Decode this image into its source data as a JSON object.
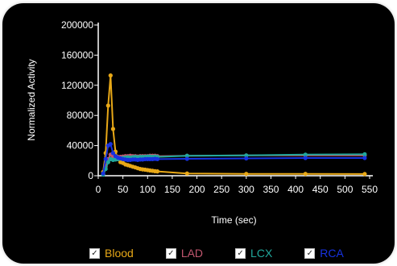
{
  "chart_data": {
    "type": "line",
    "title": "",
    "xlabel": "Time (sec)",
    "ylabel": "Normalized Activity",
    "xlim": [
      0,
      550
    ],
    "ylim": [
      0,
      200000
    ],
    "x_ticks": [
      0,
      50,
      100,
      150,
      200,
      250,
      300,
      350,
      400,
      450,
      500,
      550
    ],
    "x_tick_labels": [
      "0",
      "50",
      "100",
      "150",
      "200",
      "250",
      "300",
      "350",
      "400",
      "450",
      "500",
      "550"
    ],
    "y_ticks": [
      0,
      40000,
      80000,
      120000,
      160000,
      200000
    ],
    "y_tick_labels": [
      "0",
      "40000",
      "80000",
      "120000",
      "160000",
      "200000"
    ],
    "grid": false,
    "legend_position": "bottom",
    "series": [
      {
        "name": "Blood",
        "color": "#e8a817",
        "x": [
          10,
          15,
          20,
          25,
          30,
          35,
          40,
          45,
          50,
          55,
          60,
          65,
          70,
          75,
          80,
          85,
          90,
          95,
          100,
          105,
          110,
          115,
          120,
          180,
          300,
          420,
          540
        ],
        "y": [
          5000,
          30000,
          93000,
          133000,
          62000,
          32000,
          22000,
          18000,
          17000,
          15000,
          14000,
          13000,
          12000,
          11000,
          10000,
          9000,
          8500,
          8000,
          7500,
          7000,
          6500,
          6000,
          5800,
          3000,
          2500,
          2500,
          2200
        ]
      },
      {
        "name": "LAD",
        "color": "#c0566e",
        "x": [
          10,
          15,
          20,
          25,
          30,
          35,
          40,
          45,
          50,
          55,
          60,
          65,
          70,
          75,
          80,
          85,
          90,
          95,
          100,
          105,
          110,
          115,
          120,
          180,
          300,
          420,
          540
        ],
        "y": [
          2000,
          12000,
          22000,
          28000,
          26000,
          25000,
          25000,
          25000,
          25500,
          26000,
          26000,
          26500,
          26000,
          26000,
          25500,
          26000,
          26000,
          26000,
          26000,
          26500,
          26500,
          26500,
          26000,
          26500,
          27000,
          27000,
          27000
        ]
      },
      {
        "name": "LCX",
        "color": "#21a89c",
        "x": [
          10,
          15,
          20,
          25,
          30,
          35,
          40,
          45,
          50,
          55,
          60,
          65,
          70,
          75,
          80,
          85,
          90,
          95,
          100,
          105,
          110,
          115,
          120,
          180,
          300,
          420,
          540
        ],
        "y": [
          1500,
          9000,
          18000,
          22000,
          21000,
          21500,
          22000,
          23000,
          23500,
          24000,
          24500,
          24000,
          24500,
          25000,
          24500,
          25000,
          25000,
          25000,
          25500,
          25500,
          25000,
          25500,
          25000,
          26500,
          27000,
          28000,
          28500
        ]
      },
      {
        "name": "RCA",
        "color": "#1732e0",
        "x": [
          10,
          15,
          20,
          25,
          30,
          35,
          40,
          45,
          50,
          55,
          60,
          65,
          70,
          75,
          80,
          85,
          90,
          95,
          100,
          105,
          110,
          115,
          120,
          180,
          300,
          420,
          540
        ],
        "y": [
          3000,
          22000,
          40000,
          42000,
          30000,
          26000,
          24000,
          23000,
          22000,
          21500,
          21000,
          21000,
          21500,
          21500,
          21000,
          21500,
          21500,
          22000,
          22000,
          22000,
          22000,
          22500,
          22000,
          22500,
          23000,
          23500,
          23500
        ]
      }
    ]
  },
  "legend": {
    "items": [
      {
        "label": "Blood",
        "color": "#e8a817",
        "checked_glyph": "✓"
      },
      {
        "label": "LAD",
        "color": "#c0566e",
        "checked_glyph": "✓"
      },
      {
        "label": "LCX",
        "color": "#21a89c",
        "checked_glyph": "✓"
      },
      {
        "label": "RCA",
        "color": "#1732e0",
        "checked_glyph": "✓"
      }
    ]
  },
  "colors": {
    "background": "#000000",
    "axis": "#ffffff",
    "text": "#ffffff"
  }
}
